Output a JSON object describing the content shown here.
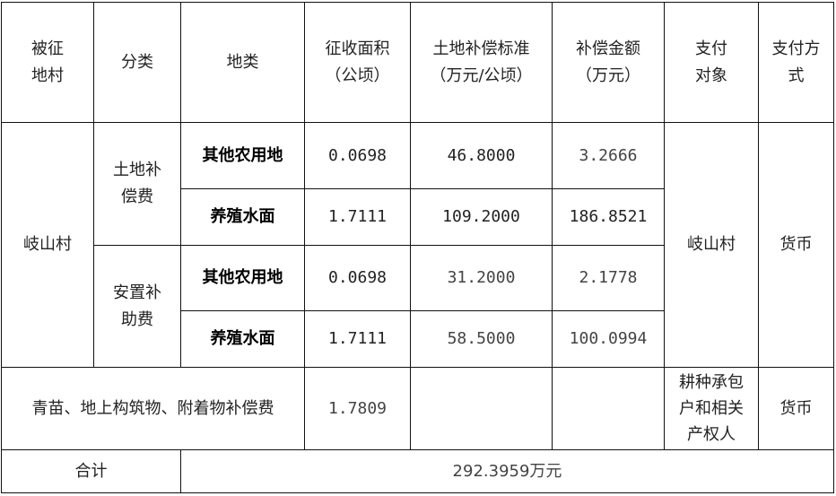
{
  "headers": {
    "village": [
      "被征",
      "地村"
    ],
    "category": "分类",
    "land_type": "地类",
    "area": [
      "征收面积",
      "（公顷）"
    ],
    "standard": [
      "土地补偿标准",
      "（万元/公顷）"
    ],
    "amount": [
      "补偿金额",
      "（万元）"
    ],
    "payee": [
      "支付",
      "对象"
    ],
    "method": [
      "支付方",
      "式"
    ]
  },
  "village": "岐山村",
  "groups": [
    {
      "category": [
        "土地补",
        "偿费"
      ],
      "rows": [
        {
          "land_type": "其他农用地",
          "area": "0.0698",
          "standard": "46.8000",
          "amount": "3.2666"
        },
        {
          "land_type": "养殖水面",
          "area": "1.7111",
          "standard": "109.2000",
          "amount": "186.8521"
        }
      ]
    },
    {
      "category": [
        "安置补",
        "助费"
      ],
      "rows": [
        {
          "land_type": "其他农用地",
          "area": "0.0698",
          "standard": "31.2000",
          "amount": "2.1778"
        },
        {
          "land_type": "养殖水面",
          "area": "1.7111",
          "standard": "58.5000",
          "amount": "100.0994"
        }
      ]
    }
  ],
  "payee": "岐山村",
  "method": "货币",
  "crops_row": {
    "label": "青苗、地上构筑物、附着物补偿费",
    "area": "1.7809",
    "payee": [
      "耕种承包",
      "户和相关",
      "产权人"
    ],
    "method": "货币"
  },
  "total": {
    "label": "合计",
    "value": "292.3959万元"
  }
}
